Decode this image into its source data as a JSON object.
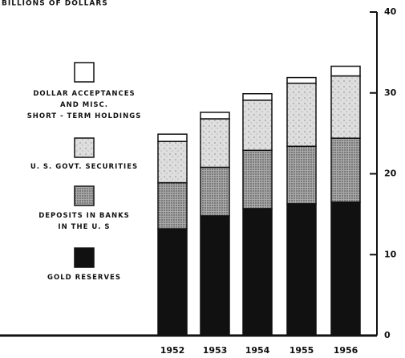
{
  "chart_data": {
    "type": "stacked_bar",
    "title": "BILLIONS OF DOLLARS",
    "categories": [
      "1952",
      "1953",
      "1954",
      "1955",
      "1956"
    ],
    "series": [
      {
        "name": "GOLD RESERVES",
        "color": "#111111",
        "values": [
          13.2,
          14.8,
          15.7,
          16.3,
          16.5
        ]
      },
      {
        "name": "DEPOSITS IN BANKS\nIN THE U. S",
        "color": "#a9a9a9",
        "values": [
          5.7,
          6.0,
          7.2,
          7.1,
          7.9
        ]
      },
      {
        "name": "U. S. GOVT. SECURITIES",
        "color": "#dedede",
        "values": [
          5.1,
          6.0,
          6.2,
          7.8,
          7.7
        ]
      },
      {
        "name": "DOLLAR ACCEPTANCES\nAND MISC.\nSHORT - TERM HOLDINGS",
        "color": "#ffffff",
        "values": [
          0.9,
          0.8,
          0.8,
          0.7,
          1.2
        ]
      }
    ],
    "ylim": [
      0,
      40
    ],
    "yticks": [
      0,
      10,
      20,
      30,
      40
    ]
  }
}
